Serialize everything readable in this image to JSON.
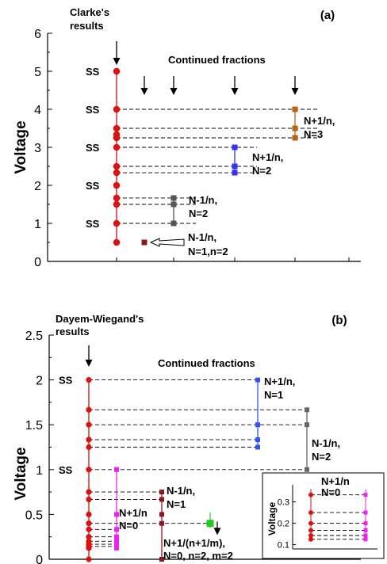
{
  "chart_data": [
    {
      "type": "scatter",
      "panel": "(a)",
      "ylabel": "Voltage",
      "ylim": [
        0,
        6
      ],
      "yticks": [
        "0",
        "1",
        "2",
        "3",
        "4",
        "5",
        "6"
      ],
      "header_left": [
        "Clarke's",
        "results"
      ],
      "header_mid": "Continued fractions",
      "ss_label": "SS",
      "ss_values": [
        5,
        4,
        3,
        2,
        1
      ],
      "clarke_points": [
        0.5,
        1,
        1.5,
        1.667,
        2,
        2.333,
        2.5,
        3,
        3.25,
        3.333,
        3.5,
        4,
        5
      ],
      "groups": [
        {
          "color": "#8b1a1a",
          "column": 1,
          "values": [
            0.5
          ],
          "label": [
            "N-1/n,",
            "N=1,n=2"
          ],
          "hollow_arrow": true
        },
        {
          "color": "#555555",
          "column": 2,
          "values": [
            1,
            1.5,
            1.667
          ],
          "label": [
            "N-1/n,",
            "N=2"
          ]
        },
        {
          "color": "#3333ee",
          "column": 3,
          "values": [
            2.333,
            2.5,
            3
          ],
          "label": [
            "N+1/n,",
            "N=2"
          ]
        },
        {
          "color": "#b8650f",
          "column": 4,
          "values": [
            3.25,
            3.5,
            4
          ],
          "label": [
            "N+1/n,",
            "N=3"
          ]
        }
      ]
    },
    {
      "type": "scatter",
      "panel": "(b)",
      "ylabel": "Voltage",
      "ylim": [
        0,
        2.5
      ],
      "yticks": [
        "0",
        "0.5",
        "1",
        "1.5",
        "2",
        "2.5"
      ],
      "header_left": [
        "Dayem-Wiegand's",
        "results"
      ],
      "header_mid": "Continued fractions",
      "ss_label": "SS",
      "ss_values": [
        2,
        1
      ],
      "dw_points": [
        0,
        0.125,
        0.143,
        0.167,
        0.2,
        0.25,
        0.333,
        0.4,
        0.5,
        0.667,
        0.75,
        1,
        1.25,
        1.333,
        1.5,
        1.667,
        2
      ],
      "groups": [
        {
          "color": "#ee22ee",
          "column": "a",
          "values": [
            0.125,
            0.143,
            0.167,
            0.2,
            0.25,
            0.333,
            0.5,
            1
          ],
          "label": [
            "N+1/n",
            "N=0"
          ]
        },
        {
          "color": "#8b1a1a",
          "column": "b",
          "values": [
            0,
            0.4,
            0.5,
            0.667,
            0.75
          ],
          "label": [
            "N-1/n,",
            "N=1"
          ]
        },
        {
          "color": "#22cc22",
          "column": "c",
          "values": [
            0.4
          ],
          "label": [
            "N+1/(n+1/m),",
            "N=0, n=2, m=2"
          ]
        },
        {
          "color": "#3355ee",
          "column": "d",
          "values": [
            1.25,
            1.333,
            1.5,
            2
          ],
          "label": [
            "N+1/n,",
            "N=1"
          ]
        },
        {
          "color": "#666666",
          "column": "e",
          "values": [
            1,
            1.5,
            1.667
          ],
          "label": [
            "N-1/n,",
            "N=2"
          ]
        }
      ],
      "inset": {
        "title": [
          "N+1/n",
          "N=0"
        ],
        "ylabel": "Voltage",
        "ylim": [
          0.08,
          0.38
        ],
        "yticks": [
          "0.1",
          "0.2",
          "0.3"
        ],
        "red_values": [
          0.125,
          0.143,
          0.167,
          0.2,
          0.25,
          0.333
        ],
        "pink_values": [
          0.125,
          0.143,
          0.167,
          0.2,
          0.25,
          0.333
        ]
      }
    }
  ]
}
